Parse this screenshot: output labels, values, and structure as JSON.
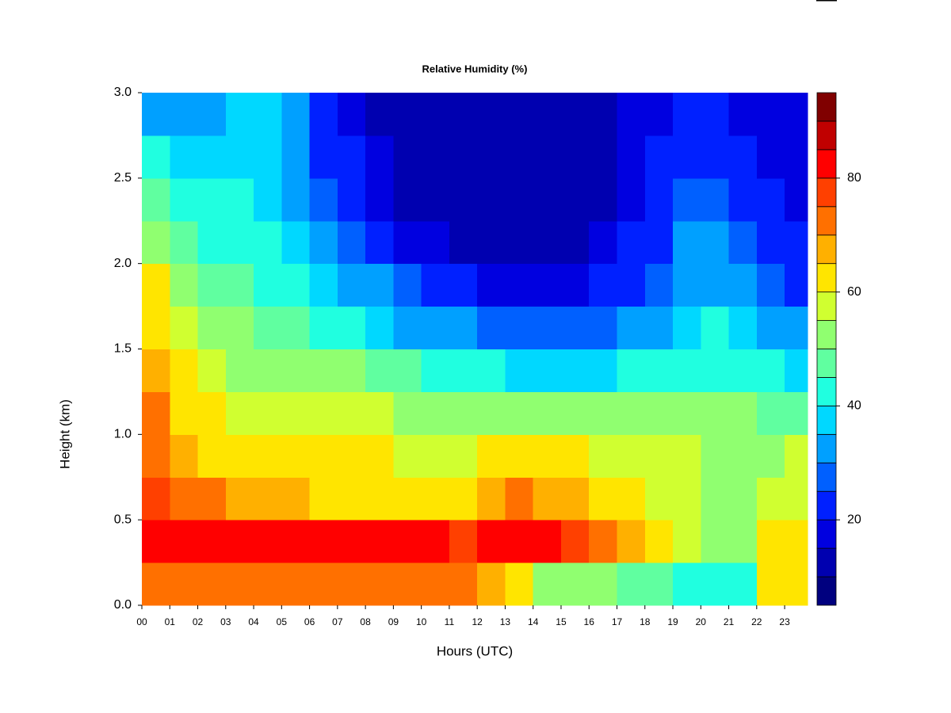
{
  "chart_data": {
    "type": "heatmap",
    "title": "Relative Humidity (%)",
    "x_label": "Hours (UTC)",
    "y_label": "Height (km)",
    "x": [
      0.5,
      1.5,
      2.5,
      3.5,
      4.5,
      5.5,
      6.5,
      7.5,
      8.5,
      9.5,
      10.5,
      11.5,
      12.5,
      13.5,
      14.5,
      15.5,
      16.5,
      17.5,
      18.5,
      19.5,
      20.5,
      21.5,
      22.5,
      23.5
    ],
    "y": [
      0.125,
      0.375,
      0.625,
      0.875,
      1.125,
      1.375,
      1.625,
      1.875,
      2.125,
      2.375,
      2.625,
      2.875
    ],
    "z": [
      [
        70,
        72,
        74,
        74,
        74,
        74,
        72,
        72,
        72,
        72,
        70,
        70,
        68,
        60,
        52,
        50,
        50,
        48,
        46,
        44,
        42,
        44,
        62,
        64
      ],
      [
        80,
        80,
        82,
        82,
        82,
        80,
        80,
        80,
        82,
        82,
        80,
        78,
        82,
        84,
        80,
        76,
        72,
        68,
        62,
        56,
        52,
        50,
        60,
        62
      ],
      [
        75,
        72,
        70,
        68,
        68,
        66,
        64,
        64,
        64,
        62,
        62,
        64,
        68,
        70,
        68,
        66,
        62,
        60,
        58,
        56,
        54,
        52,
        56,
        58
      ],
      [
        72,
        66,
        64,
        64,
        62,
        62,
        60,
        60,
        60,
        58,
        58,
        58,
        60,
        62,
        62,
        60,
        58,
        58,
        56,
        56,
        54,
        54,
        54,
        56
      ],
      [
        70,
        62,
        60,
        58,
        58,
        58,
        56,
        56,
        56,
        54,
        54,
        54,
        54,
        54,
        54,
        54,
        52,
        52,
        52,
        52,
        50,
        50,
        48,
        46
      ],
      [
        66,
        60,
        56,
        54,
        54,
        52,
        50,
        50,
        48,
        46,
        44,
        42,
        40,
        38,
        38,
        38,
        38,
        40,
        42,
        44,
        44,
        44,
        40,
        36
      ],
      [
        64,
        56,
        52,
        50,
        48,
        46,
        42,
        40,
        38,
        34,
        32,
        30,
        28,
        26,
        26,
        26,
        28,
        30,
        34,
        38,
        40,
        38,
        34,
        30
      ],
      [
        60,
        50,
        48,
        46,
        44,
        40,
        36,
        34,
        30,
        26,
        22,
        20,
        18,
        16,
        16,
        18,
        20,
        24,
        28,
        34,
        34,
        32,
        28,
        24
      ],
      [
        52,
        46,
        44,
        42,
        40,
        36,
        30,
        26,
        22,
        18,
        16,
        14,
        12,
        12,
        12,
        14,
        16,
        20,
        24,
        30,
        30,
        28,
        24,
        20
      ],
      [
        46,
        42,
        40,
        40,
        38,
        34,
        26,
        22,
        18,
        14,
        12,
        10,
        10,
        10,
        10,
        10,
        14,
        18,
        22,
        26,
        26,
        24,
        20,
        18
      ],
      [
        40,
        38,
        38,
        38,
        38,
        32,
        24,
        20,
        16,
        12,
        10,
        10,
        10,
        10,
        10,
        10,
        12,
        16,
        20,
        22,
        22,
        20,
        18,
        16
      ],
      [
        34,
        34,
        34,
        36,
        36,
        30,
        22,
        18,
        14,
        10,
        10,
        10,
        10,
        10,
        10,
        10,
        12,
        16,
        18,
        20,
        20,
        18,
        16,
        16
      ]
    ],
    "xlim": [
      0,
      23.82
    ],
    "ylim": [
      0,
      3
    ],
    "xticks": [
      {
        "value": 0,
        "label": "00"
      },
      {
        "value": 1,
        "label": "01"
      },
      {
        "value": 2,
        "label": "02"
      },
      {
        "value": 3,
        "label": "03"
      },
      {
        "value": 4,
        "label": "04"
      },
      {
        "value": 5,
        "label": "05"
      },
      {
        "value": 6,
        "label": "06"
      },
      {
        "value": 7,
        "label": "07"
      },
      {
        "value": 8,
        "label": "08"
      },
      {
        "value": 9,
        "label": "09"
      },
      10,
      11,
      12,
      13,
      14,
      15,
      16,
      17,
      18,
      19,
      20,
      21,
      22,
      23
    ],
    "yticks": [
      {
        "value": 0,
        "label": "0.0"
      },
      0.5,
      {
        "value": 1,
        "label": "1.0"
      },
      1.5,
      {
        "value": 2,
        "label": "2.0"
      },
      2.5,
      {
        "value": 3,
        "label": "3.0"
      }
    ],
    "zlim": [
      5,
      95
    ],
    "zticks": [
      20,
      40,
      60,
      80
    ],
    "colors": [
      "#00007f",
      "#0000b0",
      "#0000e0",
      "#0020ff",
      "#0060ff",
      "#00a0ff",
      "#00d8ff",
      "#20ffe0",
      "#60ffa0",
      "#90ff70",
      "#d0ff30",
      "#ffe500",
      "#ffb000",
      "#ff7000",
      "#ff4000",
      "#ff0000",
      "#c00000",
      "#800000"
    ]
  }
}
